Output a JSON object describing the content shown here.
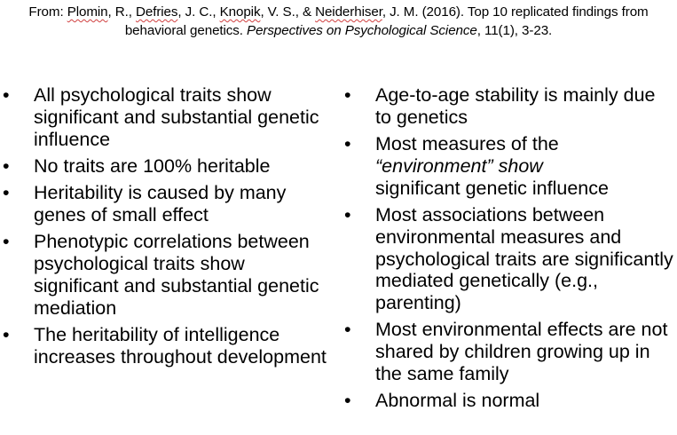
{
  "citation": {
    "prefix": "From: ",
    "author1": "Plomin",
    "sep1": ", R., ",
    "author2": "Defries",
    "sep2": ", J. C., ",
    "author3": "Knopik",
    "sep3": ", V. S., & ",
    "author4": "Neiderhiser",
    "sep4": ", J. M.  (2016). Top 10 replicated findings from behavioral genetics.  ",
    "journal": "Perspectives on Psychological Science",
    "suffix": ", 11(1), 3-23."
  },
  "bullet_symbol": "•",
  "left_items": [
    "All psychological traits show significant and substantial genetic influence",
    "No traits are 100% heritable",
    "Heritability is caused by many genes of small effect",
    "Phenotypic correlations between psychological traits show significant and substantial genetic mediation",
    "The heritability of intelligence increases throughout development"
  ],
  "right_items": {
    "item1": "Age-to-age stability is mainly due to genetics",
    "item2_pre": "Most measures of the ",
    "item2_em": "“environment” show",
    "item2_post": "significant genetic influence",
    "item3": "Most associations between environmental measures and psychological traits are significantly mediated genetically (e.g., parenting)",
    "item4": "Most environmental effects are not shared by children growing up in the same family",
    "item5": "Abnormal is normal"
  }
}
